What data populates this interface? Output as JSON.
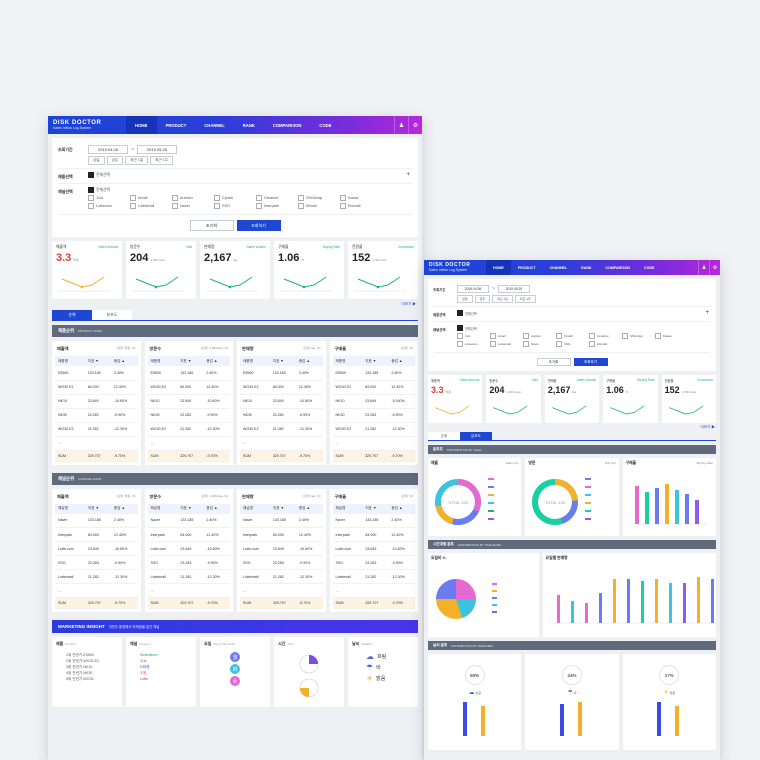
{
  "app": {
    "logo": "DISK DOCTOR",
    "subtitle": "Sales Inflow Log System",
    "nav": [
      "HOME",
      "PRODUCT",
      "CHANNEL",
      "RANK",
      "COMPARISON",
      "CODE"
    ],
    "icons": [
      "user-icon",
      "settings-icon"
    ]
  },
  "filter": {
    "period_label": "조회기간",
    "date_from": "2019.04.26",
    "date_to": "2019.05.25",
    "date_sep": "~",
    "quick": [
      "금일",
      "금주",
      "최근 1일",
      "최근 1주"
    ],
    "product_label": "제품선택",
    "product_all": "전체선택",
    "channel_label": "채널선택",
    "channel_all": "전체선택",
    "channels": [
      "11st",
      "Kakao",
      "Amall",
      "Lotteoom",
      "Auction",
      "Lotteimall",
      "Cjmall",
      "Naver",
      "Gmarket",
      "SSG",
      "SSGshop",
      "Interpark",
      "Wmall",
      "Etcmall"
    ],
    "reset_button": "초기화",
    "search_button": "조회하기"
  },
  "kpis": [
    {
      "title": "매출액",
      "tag": "Sales Amount",
      "value": "3.3",
      "unit": "억원",
      "red": true
    },
    {
      "title": "방문수",
      "tag": "Visit",
      "value": "204",
      "unit": "1,000 view",
      "red": false
    },
    {
      "title": "판매량",
      "tag": "Sales Volume",
      "value": "2,167",
      "unit": "Ea",
      "red": false
    },
    {
      "title": "구매율",
      "tag": "Buying Rate",
      "value": "1.06",
      "unit": "%",
      "red": false
    },
    {
      "title": "전환율",
      "tag": "Conversion",
      "value": "152",
      "unit": "1,000 view",
      "red": false
    }
  ],
  "more_link": "더보기 ▶",
  "tabs": [
    "순위",
    "분포도"
  ],
  "product_rank": {
    "title": "제품순위",
    "subtitle": "PRODUCT RANK",
    "cards": [
      {
        "title": "매출액",
        "tag": "Sales Amount",
        "note": "(단위: 억원, %)"
      },
      {
        "title": "방문수",
        "tag": "Visit",
        "note": "(단위: 1,000view, %)"
      },
      {
        "title": "판매량",
        "tag": "Sales Volume",
        "note": "(단위: Ea, %)"
      },
      {
        "title": "구매율",
        "tag": "Buying Rate",
        "note": "(단위: %)"
      }
    ],
    "columns": [
      "제품명",
      "지표 ▼",
      "증감 ▲"
    ],
    "rows": [
      [
        "E5500",
        "133.185",
        "2.40%"
      ],
      [
        "WG30 E2",
        "84.000",
        "12.40%"
      ],
      [
        "NK10",
        "23.649",
        "-10.60%"
      ],
      [
        "NK30",
        "23.283",
        "-9.90%"
      ],
      [
        "WG30 E2",
        "21.282",
        "-12.30%"
      ],
      [
        "...",
        "",
        ""
      ]
    ],
    "sum": [
      "SUM",
      "329.707",
      "-9.70%"
    ]
  },
  "channel_rank": {
    "title": "채널순위",
    "subtitle": "CHANNEL RANK",
    "columns": [
      "채널명",
      "지표 ▼",
      "증감 ▲"
    ],
    "rows": [
      [
        "Naver",
        "133.185",
        "2.40%"
      ],
      [
        "Interpark",
        "84.000",
        "12.40%"
      ],
      [
        "Lotte.com",
        "23.649",
        "-10.60%"
      ],
      [
        "SSG",
        "23.283",
        "-9.90%"
      ],
      [
        "Lotteimall",
        "21.282",
        "-12.30%"
      ],
      [
        "...",
        "",
        ""
      ]
    ],
    "sum": [
      "SUM",
      "329.707",
      "-9.70%"
    ]
  },
  "marketing": {
    "title": "MARKETING INSIGHT",
    "subtitle": "이번주 환경에서 마케팅을 앞선 채널",
    "cards": [
      {
        "title": "제품",
        "tag": "Product",
        "lines": [
          "1위 전년기-E5500",
          "2위 전년기-WG30 E2",
          "3위 전년기-NK10",
          "4위 전년기-NK30",
          "5위 전년기-WG30"
        ]
      },
      {
        "title": "채널",
        "tag": "Channel",
        "lines": [
          "Smartstore",
          "11st",
          "G마켓",
          "쿠팡",
          "Lotte"
        ]
      },
      {
        "title": "요일",
        "tag": "Day of the week",
        "lines": [
          "월",
          "화",
          "수"
        ]
      },
      {
        "title": "시간",
        "tag": "Time",
        "lines": [
          "",
          ""
        ]
      },
      {
        "title": "날씨",
        "tag": "Weather",
        "lines": [
          "흐림",
          "비",
          "맑음"
        ]
      }
    ]
  },
  "dist": {
    "section1": {
      "title": "분포도",
      "subtitle": "DISTRIBUTION BY SALE",
      "cards": [
        {
          "title": "매출",
          "tag": "Sales (%)",
          "center": "TOTAL 100"
        },
        {
          "title": "방문",
          "tag": "Visit (%)",
          "center": "TOTAL 100"
        },
        {
          "title": "구매율",
          "tag": "Buying Rate"
        }
      ]
    },
    "section2": {
      "title": "시간대별 분포",
      "subtitle": "DISTRIBUTION BY TIME ZONE",
      "cards": [
        {
          "title": "요일비 %",
          "tag": ""
        },
        {
          "title": "요일별 판매량",
          "tag": ""
        }
      ]
    },
    "section3": {
      "title": "날씨 분포",
      "subtitle": "DISTRIBUTION BY WEATHER",
      "cards": [
        {
          "pct": "50%",
          "label": "흐림"
        },
        {
          "pct": "24%",
          "label": "비"
        },
        {
          "pct": "17%",
          "label": "맑음"
        }
      ]
    }
  }
}
